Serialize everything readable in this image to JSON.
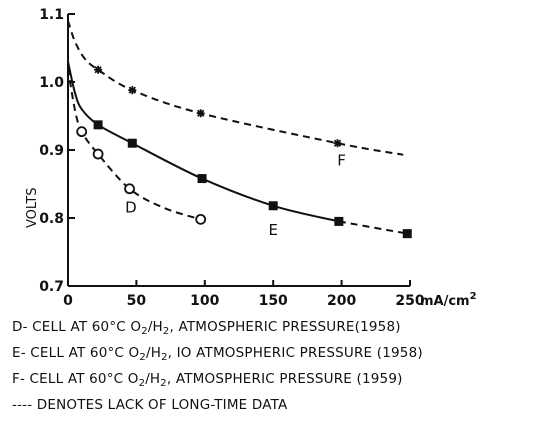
{
  "chart_data": {
    "type": "line",
    "ylabel": "VOLTS",
    "x_unit": "mA/cm",
    "x_unit_sup": "2",
    "xlim": [
      0,
      250
    ],
    "ylim": [
      0.7,
      1.1
    ],
    "x_ticks": [
      0,
      50,
      100,
      150,
      200,
      250
    ],
    "x_tick_labels": [
      "0",
      "50",
      "100",
      "150",
      "200",
      "250"
    ],
    "y_ticks": [
      0.7,
      0.8,
      0.9,
      1.0,
      1.1
    ],
    "y_tick_labels": [
      "0.7",
      "0.8",
      "0.9",
      "1.0",
      "1.1"
    ],
    "grid": false,
    "series": [
      {
        "name": "D",
        "marker": "circle",
        "points": [
          [
            10,
            0.927
          ],
          [
            22,
            0.894
          ],
          [
            45,
            0.843
          ],
          [
            97,
            0.798
          ]
        ],
        "curve_x": [
          0,
          5,
          10,
          22,
          45,
          70,
          97
        ],
        "curve_y": [
          1.02,
          0.96,
          0.927,
          0.894,
          0.843,
          0.815,
          0.798
        ],
        "solid_until_x": 0,
        "label_at": [
          46,
          0.808
        ]
      },
      {
        "name": "E",
        "marker": "filled-square",
        "points": [
          [
            22,
            0.937
          ],
          [
            47,
            0.91
          ],
          [
            98,
            0.858
          ],
          [
            150,
            0.818
          ],
          [
            198,
            0.795
          ],
          [
            248,
            0.777
          ]
        ],
        "curve_x": [
          0,
          5,
          10,
          22,
          47,
          98,
          150,
          198,
          248
        ],
        "curve_y": [
          1.03,
          0.985,
          0.96,
          0.937,
          0.91,
          0.858,
          0.818,
          0.795,
          0.777
        ],
        "solid_until_x": 198,
        "label_at": [
          150,
          0.775
        ]
      },
      {
        "name": "F",
        "marker": "asterisk",
        "points": [
          [
            22,
            1.018
          ],
          [
            47,
            0.988
          ],
          [
            97,
            0.954
          ],
          [
            197,
            0.91
          ]
        ],
        "curve_x": [
          0,
          5,
          12,
          22,
          47,
          97,
          197,
          245
        ],
        "curve_y": [
          1.09,
          1.06,
          1.035,
          1.018,
          0.988,
          0.954,
          0.91,
          0.893
        ],
        "solid_until_x": 0,
        "label_at": [
          200,
          0.877
        ]
      }
    ],
    "annotations": [
      {
        "pre": "D- CELL AT 60°C O",
        "s1": "2",
        "mid": "/H",
        "s2": "2",
        "post": ", ATMOSPHERIC  PRESSURE(1958)"
      },
      {
        "pre": "E- CELL AT 60°C O",
        "s1": "2",
        "mid": "/H",
        "s2": "2",
        "post": ", IO ATMOSPHERIC PRESSURE (1958)"
      },
      {
        "pre": "F- CELL AT 60°C O",
        "s1": "2",
        "mid": "/H",
        "s2": "2",
        "post": ", ATMOSPHERIC  PRESSURE (1959)"
      },
      {
        "pre": "---- DENOTES LACK OF LONG-TIME DATA",
        "s1": "",
        "mid": "",
        "s2": "",
        "post": ""
      }
    ]
  }
}
